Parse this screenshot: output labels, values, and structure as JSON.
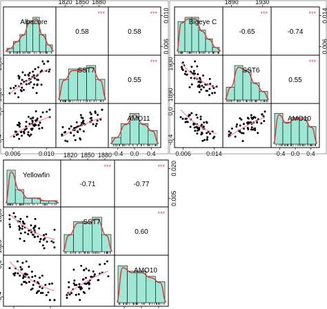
{
  "colors": {
    "hist_fill": "#9fe8d6",
    "density_line": "#e03030",
    "smooth_line": "#ff7fb0",
    "stars": "#ff3366",
    "point": "#000000",
    "frame": "#000000"
  },
  "chart_data": [
    {
      "type": "scatter",
      "variables": [
        {
          "name": "Albacore",
          "range": [
            0.004,
            0.012
          ],
          "ticks": [
            "0.006",
            "0.010"
          ]
        },
        {
          "name": "SST7",
          "range": [
            1800,
            1885
          ],
          "ticks": [
            "1820",
            "1850",
            "1880"
          ]
        },
        {
          "name": "AMO11",
          "range": [
            -0.55,
            0.42
          ],
          "ticks": [
            "-0.4",
            "0.0",
            "0.4"
          ]
        }
      ],
      "correlations": [
        {
          "row": 0,
          "col": 1,
          "r": "0.58",
          "stars": "***"
        },
        {
          "row": 0,
          "col": 2,
          "r": "0.58",
          "stars": "***"
        },
        {
          "row": 1,
          "col": 2,
          "r": "0.55",
          "stars": "***"
        }
      ],
      "histograms": [
        [
          1,
          3,
          5,
          9,
          10,
          5,
          2
        ],
        [
          6,
          9,
          9,
          10,
          6
        ],
        [
          2,
          6,
          9,
          6,
          4
        ]
      ],
      "pairs": {
        "0-1": {
          "slope": 0.7,
          "trend": "increasing"
        },
        "0-2": {
          "slope": 0.65,
          "trend": "increasing"
        },
        "1-2": {
          "slope": 0.6,
          "trend": "increasing"
        }
      }
    },
    {
      "type": "scatter",
      "variables": [
        {
          "name": "Bigeye C",
          "range": [
            0.004,
            0.019
          ],
          "ticks": [
            "0.006",
            "0.014"
          ]
        },
        {
          "name": "SST6",
          "range": [
            1870,
            1945
          ],
          "ticks": [
            "1890",
            "1930"
          ]
        },
        {
          "name": "AMO10",
          "range": [
            -0.5,
            0.45
          ],
          "ticks": [
            "-0.4",
            "0.0",
            "0.4"
          ]
        }
      ],
      "correlations": [
        {
          "row": 0,
          "col": 1,
          "r": "-0.65",
          "stars": "***"
        },
        {
          "row": 0,
          "col": 2,
          "r": "-0.74",
          "stars": "***"
        },
        {
          "row": 1,
          "col": 2,
          "r": "0.55",
          "stars": "***"
        }
      ],
      "histograms": [
        [
          7,
          8,
          8,
          5,
          3,
          1
        ],
        [
          3,
          8,
          7,
          4,
          2
        ],
        [
          7,
          5,
          6,
          6,
          4
        ]
      ],
      "pairs": {
        "0-1": {
          "slope": -0.7,
          "trend": "decreasing"
        },
        "0-2": {
          "slope": -0.75,
          "trend": "decreasing"
        },
        "1-2": {
          "slope": 0.6,
          "trend": "increasing"
        }
      }
    },
    {
      "type": "scatter",
      "variables": [
        {
          "name": "Yellowfin",
          "range": [
            0.002,
            0.028
          ],
          "ticks": [
            "0.005",
            "0.020"
          ]
        },
        {
          "name": "SST7",
          "range": [
            1800,
            1885
          ],
          "ticks": [
            "1820",
            "1850",
            "1880"
          ]
        },
        {
          "name": "AMO10",
          "range": [
            -0.5,
            0.42
          ],
          "ticks": [
            "-0.4",
            "0.0",
            "0.4"
          ]
        }
      ],
      "correlations": [
        {
          "row": 0,
          "col": 1,
          "r": "-0.71",
          "stars": "***"
        },
        {
          "row": 0,
          "col": 2,
          "r": "-0.77",
          "stars": "***"
        },
        {
          "row": 1,
          "col": 2,
          "r": "0.60",
          "stars": "***"
        }
      ],
      "histograms": [
        [
          12,
          5,
          2,
          2,
          1,
          1
        ],
        [
          4,
          7,
          7,
          8,
          4
        ],
        [
          7,
          6,
          6,
          5,
          4
        ]
      ],
      "pairs": {
        "0-1": {
          "slope": -0.7,
          "trend": "decreasing"
        },
        "0-2": {
          "slope": -0.75,
          "trend": "decreasing"
        },
        "1-2": {
          "slope": 0.6,
          "trend": "increasing"
        }
      }
    }
  ]
}
